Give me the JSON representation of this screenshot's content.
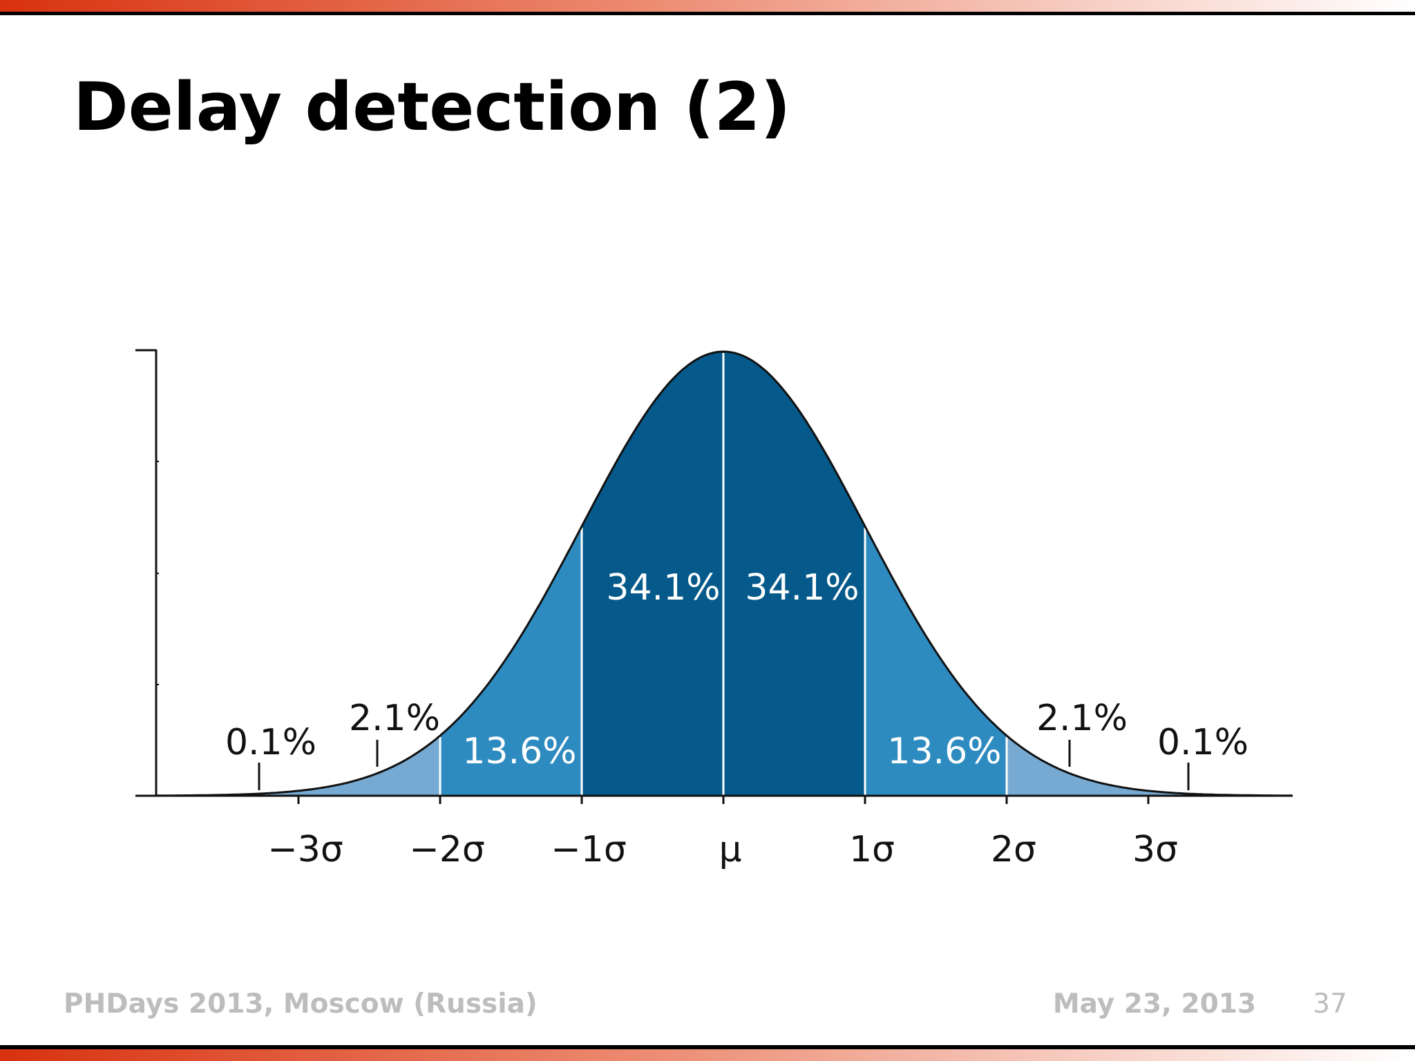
{
  "header": {
    "title": "Delay detection (2)"
  },
  "figure": {
    "x_labels": [
      "−3σ",
      "−2σ",
      "−1σ",
      "μ",
      "1σ",
      "2σ",
      "3σ"
    ],
    "region_labels": [
      "0.1%",
      "2.1%",
      "13.6%",
      "34.1%",
      "34.1%",
      "13.6%",
      "2.1%",
      "0.1%"
    ]
  },
  "footer": {
    "event": "PHDays 2013, Moscow (Russia)",
    "date": "May 23, 2013",
    "page": "37"
  }
}
